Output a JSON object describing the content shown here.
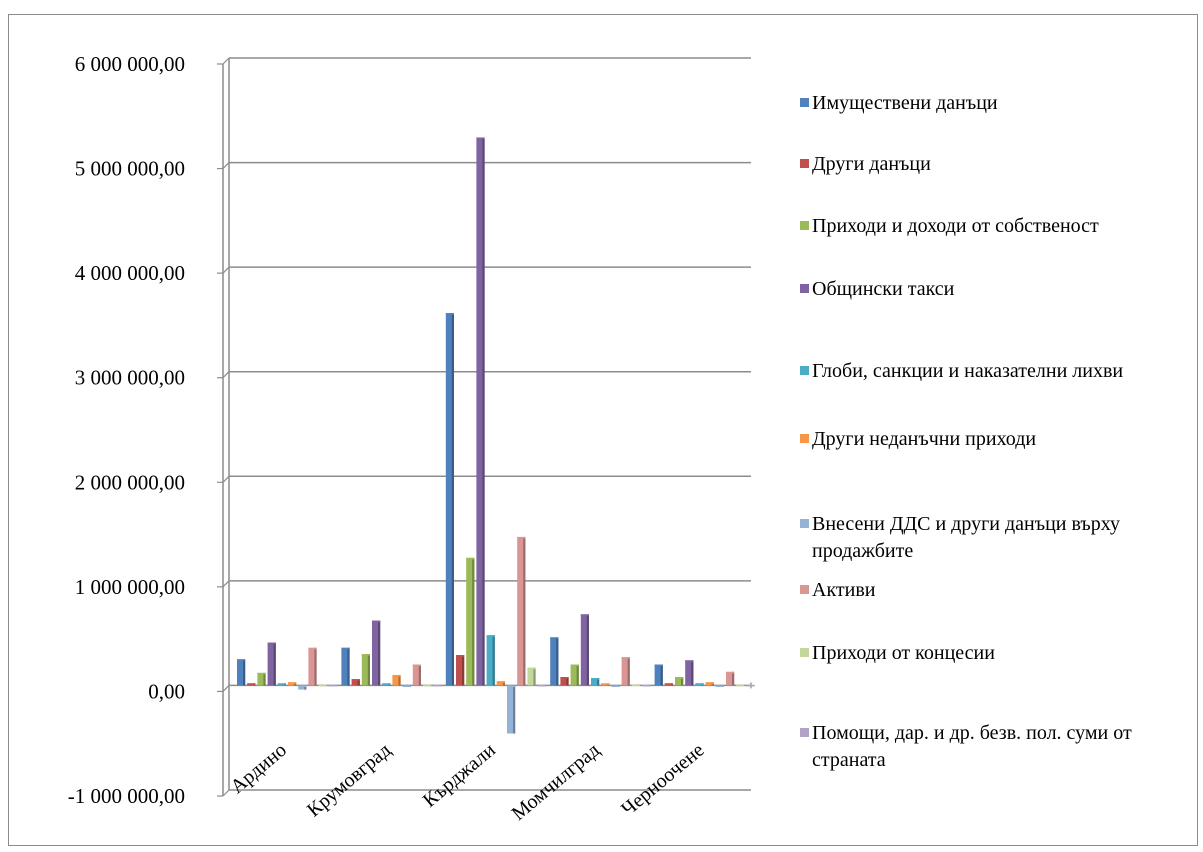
{
  "chart_data": {
    "type": "bar",
    "categories": [
      "Ардино",
      "Крумовград",
      "Кърджали",
      "Момчилград",
      "Черноочене"
    ],
    "y_tick_labels": [
      "6 000 000,00",
      "5 000 000,00",
      "4 000 000,00",
      "3 000 000,00",
      "2 000 000,00",
      "1 000 000,00",
      "0,00",
      "-1 000 000,00"
    ],
    "ylim": [
      -1000000,
      6000000
    ],
    "grid": true,
    "legend_position": "right",
    "series": [
      {
        "name": "Имуществени данъци",
        "color": "#4F81BD",
        "values": [
          250000,
          360000,
          3560000,
          460000,
          200000
        ]
      },
      {
        "name": "Други данъци",
        "color": "#C0504D",
        "values": [
          20000,
          60000,
          290000,
          80000,
          20000
        ]
      },
      {
        "name": "Приходи и доходи от собственост",
        "color": "#9BBB59",
        "values": [
          120000,
          300000,
          1220000,
          200000,
          80000
        ]
      },
      {
        "name": "Общински такси",
        "color": "#8064A2",
        "values": [
          410000,
          620000,
          5240000,
          680000,
          240000
        ]
      },
      {
        "name": "Глоби, санкции и наказателни лихви",
        "color": "#4BACC6",
        "values": [
          20000,
          20000,
          480000,
          70000,
          20000
        ]
      },
      {
        "name": "Други неданъчни приходи",
        "color": "#F79646",
        "values": [
          30000,
          100000,
          40000,
          20000,
          30000
        ]
      },
      {
        "name": "Внесени ДДС и други данъци върху продажбите",
        "color": "#95B3D7",
        "values": [
          -40000,
          -10000,
          -460000,
          -10000,
          -10000
        ]
      },
      {
        "name": "Активи",
        "color": "#D99694",
        "values": [
          360000,
          200000,
          1420000,
          270000,
          130000
        ]
      },
      {
        "name": "Приходи от концесии",
        "color": "#C3D69B",
        "values": [
          5000,
          5000,
          170000,
          10000,
          5000
        ]
      },
      {
        "name": "Помощи, дар. и др. безв. пол. суми от страната",
        "color": "#B2A2C7",
        "values": [
          5000,
          5000,
          5000,
          5000,
          5000
        ]
      }
    ]
  }
}
